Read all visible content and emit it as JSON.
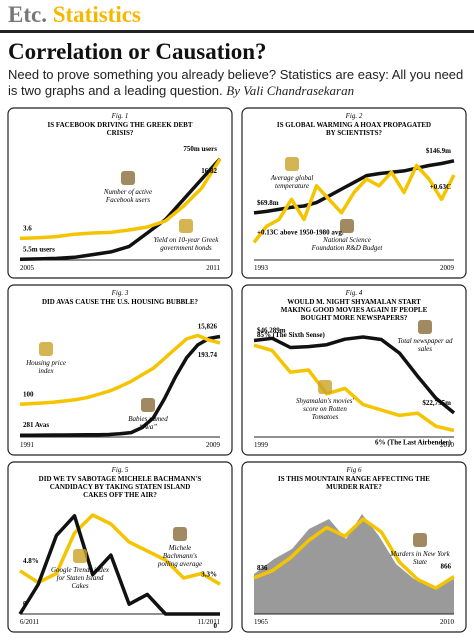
{
  "header": {
    "section": "Etc.",
    "topic": "Statistics",
    "title": "Correlation or Causation?",
    "subtitle": "Need to prove something you already believe? Statistics are easy: All you need is two graphs and a leading question.",
    "byline": "By Vali Chandrasekaran"
  },
  "chart_data": [
    {
      "type": "line",
      "fig": "Fig. 1",
      "title": "IS FACEBOOK DRIVING THE GREEK DEBT CRISIS?",
      "categories": [
        "2005",
        null,
        null,
        null,
        null,
        null,
        null,
        null,
        null,
        null,
        null,
        "2011"
      ],
      "series": [
        {
          "name": "Number of active Facebook users",
          "color": "#111111",
          "ylim": [
            0,
            800
          ],
          "values": [
            5.5,
            8,
            12,
            20,
            40,
            60,
            100,
            200,
            300,
            450,
            600,
            750
          ],
          "value_labels": [
            "5.5m users",
            null,
            null,
            null,
            null,
            null,
            null,
            null,
            null,
            null,
            null,
            "750m users"
          ]
        },
        {
          "name": "Yield on 10-year Greek government bonds",
          "color": "#f5c400",
          "ylim": [
            0,
            18
          ],
          "values": [
            3.6,
            3.7,
            3.9,
            4.3,
            4.5,
            4.6,
            5.0,
            5.5,
            6.5,
            9,
            12,
            16.82
          ],
          "value_labels": [
            "3.6",
            null,
            null,
            null,
            null,
            null,
            null,
            null,
            null,
            null,
            null,
            "16.82"
          ]
        }
      ]
    },
    {
      "type": "line",
      "fig": "Fig. 2",
      "title": "IS GLOBAL WARMING A HOAX PROPAGATED BY SCIENTISTS?",
      "categories": [
        "1993",
        null,
        null,
        null,
        null,
        null,
        null,
        null,
        null,
        null,
        null,
        null,
        null,
        null,
        null,
        null,
        "2009"
      ],
      "series": [
        {
          "name": "National Science Foundation R&D Budget",
          "color": "#111111",
          "ylim": [
            0,
            160
          ],
          "values": [
            69.8,
            72,
            75,
            78,
            80,
            85,
            95,
            105,
            115,
            125,
            128,
            130,
            132,
            136,
            140,
            143,
            146.9
          ],
          "value_labels": [
            "$69.8m",
            null,
            null,
            null,
            null,
            null,
            null,
            null,
            null,
            null,
            null,
            null,
            null,
            null,
            null,
            null,
            "$146.9m"
          ]
        },
        {
          "name": "Average global temperature",
          "color": "#f5c400",
          "ylim": [
            0,
            0.8
          ],
          "values": [
            0.13,
            0.25,
            0.3,
            0.45,
            0.3,
            0.55,
            0.45,
            0.35,
            0.5,
            0.6,
            0.55,
            0.65,
            0.5,
            0.7,
            0.6,
            0.45,
            0.63
          ],
          "value_labels": [
            "+0.13C above 1950-1980 avg.",
            null,
            null,
            null,
            null,
            null,
            null,
            null,
            null,
            null,
            null,
            null,
            null,
            null,
            null,
            null,
            "+0.63C"
          ]
        }
      ]
    },
    {
      "type": "line",
      "fig": "Fig. 3",
      "title": "DID AVAS CAUSE THE U.S. HOUSING BUBBLE?",
      "categories": [
        "1991",
        null,
        null,
        null,
        null,
        null,
        null,
        null,
        null,
        null,
        null,
        null,
        null,
        null,
        null,
        null,
        null,
        null,
        "2009"
      ],
      "series": [
        {
          "name": "Babies named “Ava”",
          "color": "#111111",
          "ylim": [
            0,
            17000
          ],
          "values": [
            281,
            290,
            300,
            310,
            320,
            330,
            340,
            350,
            400,
            500,
            700,
            1500,
            3000,
            6000,
            9500,
            12500,
            14500,
            15500,
            15826
          ],
          "value_labels": [
            "281 Avas",
            null,
            null,
            null,
            null,
            null,
            null,
            null,
            null,
            null,
            null,
            null,
            null,
            null,
            null,
            null,
            null,
            null,
            "15,826"
          ]
        },
        {
          "name": "Housing price index",
          "color": "#f5c400",
          "ylim": [
            50,
            215
          ],
          "values": [
            100,
            101,
            102,
            103,
            105,
            107,
            110,
            115,
            120,
            127,
            135,
            145,
            155,
            170,
            185,
            200,
            205,
            198,
            193.74
          ],
          "value_labels": [
            "100",
            null,
            null,
            null,
            null,
            null,
            null,
            null,
            null,
            null,
            null,
            null,
            null,
            null,
            null,
            null,
            null,
            null,
            "193.74"
          ]
        }
      ]
    },
    {
      "type": "line",
      "fig": "Fig. 4",
      "title": "WOULD M. NIGHT SHYAMALAN START MAKING GOOD MOVIES AGAIN IF PEOPLE BOUGHT MORE NEWSPAPERS?",
      "categories": [
        "1999",
        null,
        null,
        null,
        null,
        null,
        null,
        null,
        null,
        null,
        null,
        "2010"
      ],
      "series": [
        {
          "name": "Total newspaper ad sales",
          "color": "#111111",
          "ylim": [
            15000,
            50000
          ],
          "values": [
            46289,
            47000,
            44000,
            44300,
            44900,
            46700,
            47400,
            46600,
            42200,
            34700,
            27600,
            22795
          ],
          "value_labels": [
            "$46,289m",
            null,
            null,
            null,
            null,
            null,
            null,
            null,
            null,
            null,
            null,
            "$22,795m"
          ]
        },
        {
          "name": "Shyamalan's movies' score on Rotten Tomatoes",
          "color": "#f5c400",
          "ylim": [
            0,
            100
          ],
          "values": [
            85,
            80,
            60,
            62,
            40,
            45,
            30,
            25,
            20,
            22,
            10,
            6
          ],
          "value_labels": [
            "85% (The Sixth Sense)",
            null,
            null,
            null,
            null,
            null,
            null,
            null,
            null,
            null,
            null,
            "6% (The Last Airbender)"
          ]
        }
      ]
    },
    {
      "type": "line",
      "fig": "Fig. 5",
      "title": "DID WE TV SABOTAGE MICHELE BACHMANN'S CANDIDACY BY TAKING STATEN ISLAND CAKES OFF THE AIR?",
      "categories": [
        "6/2011",
        null,
        null,
        null,
        null,
        null,
        null,
        null,
        null,
        null,
        null,
        "11/2011"
      ],
      "series": [
        {
          "name": "Michele Bachmann's polling average",
          "color": "#f5c400",
          "ylim": [
            0,
            12
          ],
          "values": [
            4.8,
            3.5,
            4.5,
            9,
            11,
            10,
            8,
            7,
            6,
            4,
            4.5,
            3.3
          ],
          "value_labels": [
            "4.8%",
            null,
            null,
            null,
            null,
            null,
            null,
            null,
            null,
            null,
            null,
            "3.3%"
          ]
        },
        {
          "name": "Google Trends index for Staten Island Cakes",
          "color": "#111111",
          "ylim": [
            0,
            110
          ],
          "values": [
            0,
            30,
            80,
            100,
            40,
            60,
            10,
            20,
            0,
            0,
            0,
            0
          ],
          "value_labels": [
            "0",
            null,
            null,
            null,
            null,
            null,
            null,
            null,
            null,
            null,
            null,
            "0"
          ]
        }
      ]
    },
    {
      "type": "line",
      "fig": "Fig 6",
      "title": "IS THIS MOUNTAIN RANGE AFFECTING THE MURDER RATE?",
      "categories": [
        "1965",
        null,
        null,
        null,
        null,
        null,
        null,
        null,
        null,
        null,
        null,
        "2010"
      ],
      "series": [
        {
          "name": "Murders in New York State",
          "color": "#f5c400",
          "ylim": [
            0,
            2500
          ],
          "values": [
            836,
            1000,
            1300,
            1700,
            2000,
            1800,
            2200,
            1900,
            1200,
            800,
            600,
            866
          ],
          "value_labels": [
            "836",
            null,
            null,
            null,
            null,
            null,
            null,
            null,
            null,
            null,
            null,
            "866"
          ]
        }
      ]
    }
  ]
}
